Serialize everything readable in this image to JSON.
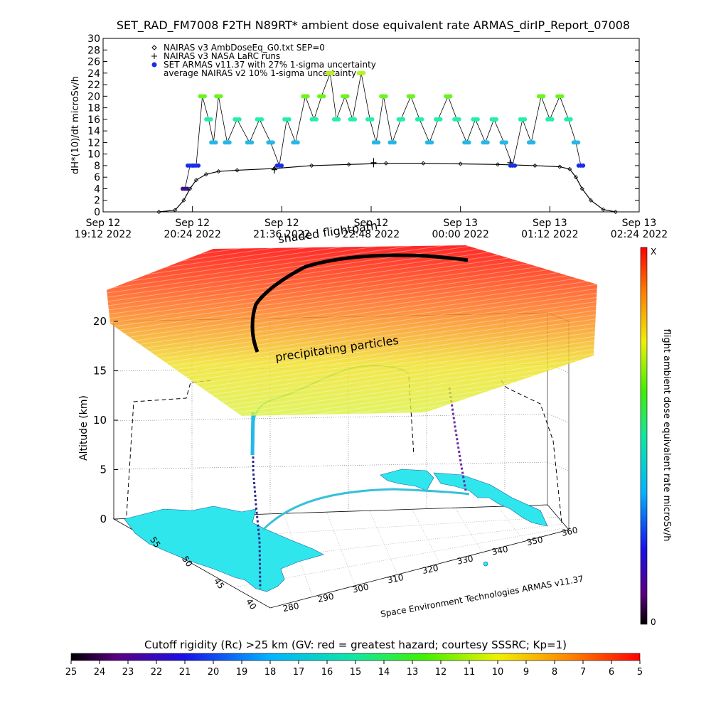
{
  "title": "SET_RAD_FM7008  F2TH N89RT* ambient dose equivalent rate ARMAS_dirIP_Report_07008",
  "chart_data": [
    {
      "type": "scatter",
      "ylabel": "dH*(10)/dt microSv/h",
      "ylim": [
        0,
        30
      ],
      "yticks": [
        0,
        2,
        4,
        6,
        8,
        10,
        12,
        14,
        16,
        18,
        20,
        22,
        24,
        26,
        28,
        30
      ],
      "xlim": [
        "2022-09-12 19:12",
        "2022-09-13 02:24"
      ],
      "xticks": [
        {
          "date": "Sep 12",
          "time": "19:12 2022"
        },
        {
          "date": "Sep 12",
          "time": "20:24 2022"
        },
        {
          "date": "Sep 12",
          "time": "21:36 2022"
        },
        {
          "date": "Sep 12",
          "time": "22:48 2022"
        },
        {
          "date": "Sep 13",
          "time": "00:00 2022"
        },
        {
          "date": "Sep 13",
          "time": "01:12 2022"
        },
        {
          "date": "Sep 13",
          "time": "02:24 2022"
        }
      ],
      "legend": [
        {
          "marker": "diamond",
          "label": "NAIRAS v3 AmbDoseEq_G0.txt SEP=0"
        },
        {
          "marker": "plus",
          "label": "NAIRAS v3 NASA LaRC runs"
        },
        {
          "marker": "dot",
          "color": "#1a2ee8",
          "label": "SET ARMAS v11.37 with 27% 1-sigma uncertainty"
        },
        {
          "marker": "none",
          "label": "average NAIRAS v2 10% 1-sigma uncertainty"
        }
      ],
      "series": [
        {
          "name": "NAIRAS v3 AmbDoseEq_G0.txt SEP=0",
          "x": [
            "2022-09-12 19:57",
            "2022-09-12 20:10",
            "2022-09-12 20:17",
            "2022-09-12 20:22",
            "2022-09-12 20:27",
            "2022-09-12 20:35",
            "2022-09-12 20:45",
            "2022-09-12 21:00",
            "2022-09-12 21:30",
            "2022-09-12 22:00",
            "2022-09-12 22:30",
            "2022-09-12 23:00",
            "2022-09-12 23:30",
            "2022-09-13 00:00",
            "2022-09-13 00:30",
            "2022-09-13 01:00",
            "2022-09-13 01:20",
            "2022-09-13 01:28",
            "2022-09-13 01:33",
            "2022-09-13 01:38",
            "2022-09-13 01:45",
            "2022-09-13 01:55",
            "2022-09-13 02:05"
          ],
          "values": [
            0,
            0.3,
            2,
            4,
            5.5,
            6.5,
            7,
            7.2,
            7.5,
            8,
            8.2,
            8.4,
            8.4,
            8.3,
            8.2,
            8,
            7.8,
            7.4,
            6,
            4,
            2,
            0.4,
            0
          ]
        },
        {
          "name": "NAIRAS v3 NASA LaRC runs",
          "x": [
            "2022-09-12 21:30",
            "2022-09-12 22:50",
            "2022-09-13 00:40"
          ],
          "values": [
            7.3,
            8.5,
            8.5
          ],
          "err": [
            0.7,
            0.8,
            0.8
          ]
        },
        {
          "name": "SET ARMAS v11.37 with 27% 1-sigma uncertainty",
          "x": [
            "2022-09-12 20:18",
            "2022-09-12 20:22",
            "2022-09-12 20:27",
            "2022-09-12 20:32",
            "2022-09-12 20:37",
            "2022-09-12 20:41",
            "2022-09-12 20:45",
            "2022-09-12 20:52",
            "2022-09-12 21:00",
            "2022-09-12 21:10",
            "2022-09-12 21:18",
            "2022-09-12 21:27",
            "2022-09-12 21:34",
            "2022-09-12 21:40",
            "2022-09-12 21:47",
            "2022-09-12 21:55",
            "2022-09-12 22:02",
            "2022-09-12 22:08",
            "2022-09-12 22:15",
            "2022-09-12 22:20",
            "2022-09-12 22:27",
            "2022-09-12 22:33",
            "2022-09-12 22:40",
            "2022-09-12 22:47",
            "2022-09-12 22:52",
            "2022-09-12 22:58",
            "2022-09-12 23:05",
            "2022-09-12 23:12",
            "2022-09-12 23:20",
            "2022-09-12 23:27",
            "2022-09-12 23:35",
            "2022-09-12 23:42",
            "2022-09-12 23:50",
            "2022-09-12 23:57",
            "2022-09-13 00:05",
            "2022-09-13 00:12",
            "2022-09-13 00:20",
            "2022-09-13 00:27",
            "2022-09-13 00:35",
            "2022-09-13 00:42",
            "2022-09-13 00:50",
            "2022-09-13 00:57",
            "2022-09-13 01:05",
            "2022-09-13 01:12",
            "2022-09-13 01:20",
            "2022-09-13 01:27",
            "2022-09-13 01:33",
            "2022-09-13 01:37"
          ],
          "values": [
            4,
            8,
            8,
            20,
            16,
            12,
            20,
            12,
            16,
            12,
            16,
            12,
            8,
            16,
            12,
            20,
            16,
            20,
            24,
            16,
            20,
            16,
            24,
            16,
            12,
            20,
            12,
            16,
            20,
            16,
            12,
            16,
            20,
            16,
            12,
            16,
            12,
            16,
            12,
            8,
            16,
            12,
            20,
            16,
            20,
            16,
            12,
            8
          ]
        }
      ]
    },
    {
      "type": "scatter3d",
      "zlabel": "Altitude (km)",
      "zlim": [
        0,
        20
      ],
      "zticks": [
        0,
        5,
        10,
        15,
        20
      ],
      "latticks": [
        40,
        45,
        50,
        55
      ],
      "lonticks": [
        280,
        290,
        300,
        310,
        320,
        330,
        340,
        350,
        360
      ],
      "annotations": [
        "precipitating particles",
        "shaded flightpath"
      ],
      "credit": "Space Environment Technologies ARMAS v11.37",
      "colorbar_label": "flight ambient dose equivalent rate microSv/h",
      "colorbar_top": "X",
      "colorbar_bottom": "0"
    }
  ],
  "colorbar_bottom": {
    "title": "Cutoff rigidity (Rc) >25 km (GV: red = greatest hazard; courtesy SSSRC; Kp=1)",
    "ticks": [
      25,
      24,
      23,
      22,
      21,
      20,
      19,
      18,
      17,
      16,
      15,
      14,
      13,
      12,
      11,
      10,
      9,
      8,
      7,
      6,
      5
    ]
  },
  "colors": {
    "nairas": "#000000",
    "dose_16": "#21f0a8",
    "dose_20": "#6af51c",
    "dose_12": "#22b9e8",
    "dose_8": "#1a2ee8",
    "dose_4": "#3e1283",
    "dose_24": "#b6f21c",
    "land": "#2fe6ec"
  }
}
